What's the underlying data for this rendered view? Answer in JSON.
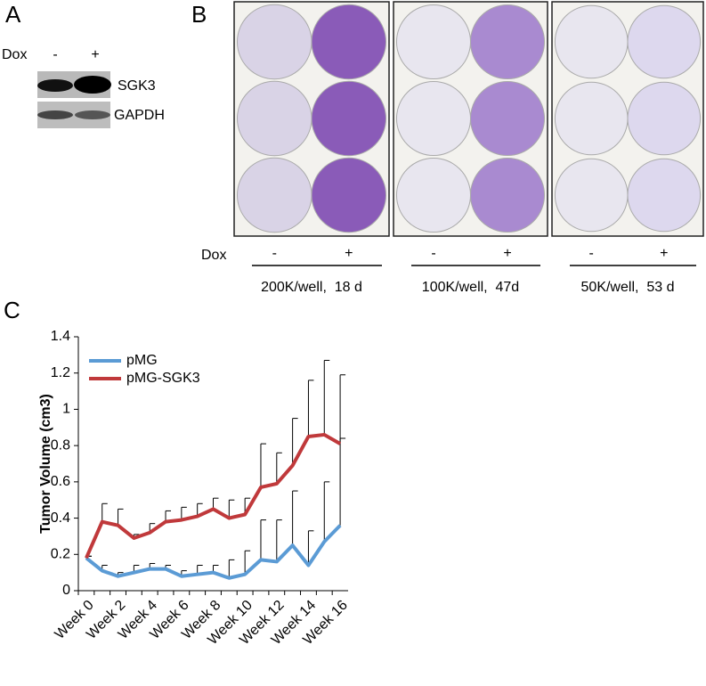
{
  "panels": {
    "A": {
      "label": "A",
      "dox": "Dox",
      "minus": "-",
      "plus": "+",
      "bands": [
        "SGK3",
        "GAPDH"
      ]
    },
    "B": {
      "label": "B",
      "dox": "Dox",
      "plates": [
        {
          "minus": "-",
          "plus": "+",
          "caption": "200K/well,  18 d"
        },
        {
          "minus": "-",
          "plus": "+",
          "caption": "100K/well,  47d"
        },
        {
          "minus": "-",
          "plus": "+",
          "caption": "50K/well,  53 d"
        }
      ]
    },
    "C": {
      "label": "C"
    }
  },
  "chart_data": {
    "type": "line",
    "y_label": "Tumor Volume (cm3)",
    "categories": [
      "Week 0",
      null,
      "Week 2",
      null,
      "Week 4",
      null,
      "Week 6",
      null,
      "Week 8",
      null,
      "Week 10",
      null,
      "Week 12",
      null,
      "Week 14",
      null,
      "Week 16"
    ],
    "series": [
      {
        "name": "pMG",
        "color": "#5b9bd5",
        "values": [
          0.18,
          0.11,
          0.08,
          0.1,
          0.12,
          0.12,
          0.08,
          0.09,
          0.1,
          0.07,
          0.09,
          0.17,
          0.16,
          0.25,
          0.14,
          0.27,
          0.36
        ],
        "errors": [
          0.01,
          0.03,
          0.02,
          0.04,
          0.03,
          0.02,
          0.03,
          0.05,
          0.04,
          0.1,
          0.13,
          0.22,
          0.23,
          0.3,
          0.19,
          0.33,
          0.48
        ]
      },
      {
        "name": "pMG-SGK3",
        "color": "#c0393b",
        "values": [
          0.18,
          0.38,
          0.36,
          0.29,
          0.32,
          0.38,
          0.39,
          0.41,
          0.45,
          0.4,
          0.42,
          0.57,
          0.59,
          0.69,
          0.85,
          0.86,
          0.81
        ],
        "errors": [
          0.01,
          0.1,
          0.09,
          0.02,
          0.05,
          0.06,
          0.07,
          0.07,
          0.06,
          0.1,
          0.09,
          0.24,
          0.17,
          0.26,
          0.31,
          0.41,
          0.38
        ]
      }
    ],
    "ylim": [
      0,
      1.4
    ],
    "yticks": [
      0,
      0.2,
      0.4,
      0.6,
      0.8,
      1,
      1.2,
      1.4
    ],
    "legend": "upper left"
  }
}
